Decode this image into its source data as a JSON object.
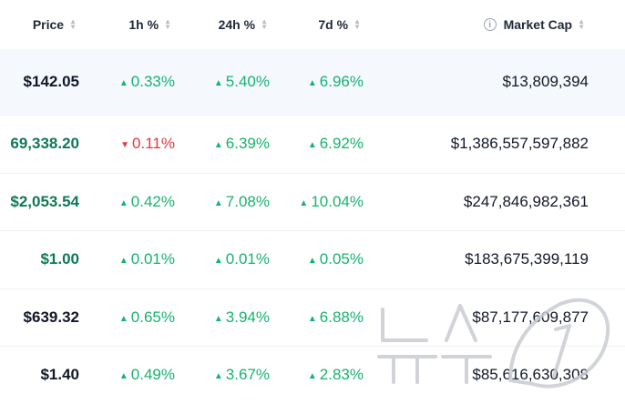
{
  "header": {
    "price": "Price",
    "h1": "1h %",
    "h24": "24h %",
    "d7": "7d %",
    "market_cap": "Market Cap"
  },
  "rows": [
    {
      "price": "$142.05",
      "h1": "0.33%",
      "h1_dir": "up",
      "h24": "5.40%",
      "h24_dir": "up",
      "d7": "6.96%",
      "d7_dir": "up",
      "market_cap": "$13,809,394"
    },
    {
      "price": "69,338.20",
      "h1": "0.11%",
      "h1_dir": "down",
      "h24": "6.39%",
      "h24_dir": "up",
      "d7": "6.92%",
      "d7_dir": "up",
      "market_cap": "$1,386,557,597,882"
    },
    {
      "price": "$2,053.54",
      "h1": "0.42%",
      "h1_dir": "up",
      "h24": "7.08%",
      "h24_dir": "up",
      "d7": "10.04%",
      "d7_dir": "up",
      "market_cap": "$247,846,982,361"
    },
    {
      "price": "$1.00",
      "h1": "0.01%",
      "h1_dir": "up",
      "h24": "0.01%",
      "h24_dir": "up",
      "d7": "0.05%",
      "d7_dir": "up",
      "market_cap": "$183,675,399,119"
    },
    {
      "price": "$639.32",
      "h1": "0.65%",
      "h1_dir": "up",
      "h24": "3.94%",
      "h24_dir": "up",
      "d7": "6.88%",
      "d7_dir": "up",
      "market_cap": "$87,177,609,877"
    },
    {
      "price": "$1.40",
      "h1": "0.49%",
      "h1_dir": "up",
      "h24": "3.67%",
      "h24_dir": "up",
      "d7": "2.83%",
      "d7_dir": "up",
      "market_cap": "$85,616,630,308"
    }
  ],
  "watermark": "뉴스1",
  "colors": {
    "up": "#16b36f",
    "down": "#e0393e",
    "highlight_row": "#f5f8fd"
  },
  "icons": {
    "sort": "sort-arrows-icon",
    "info": "info-icon",
    "up": "triangle-up-icon",
    "down": "triangle-down-icon"
  }
}
